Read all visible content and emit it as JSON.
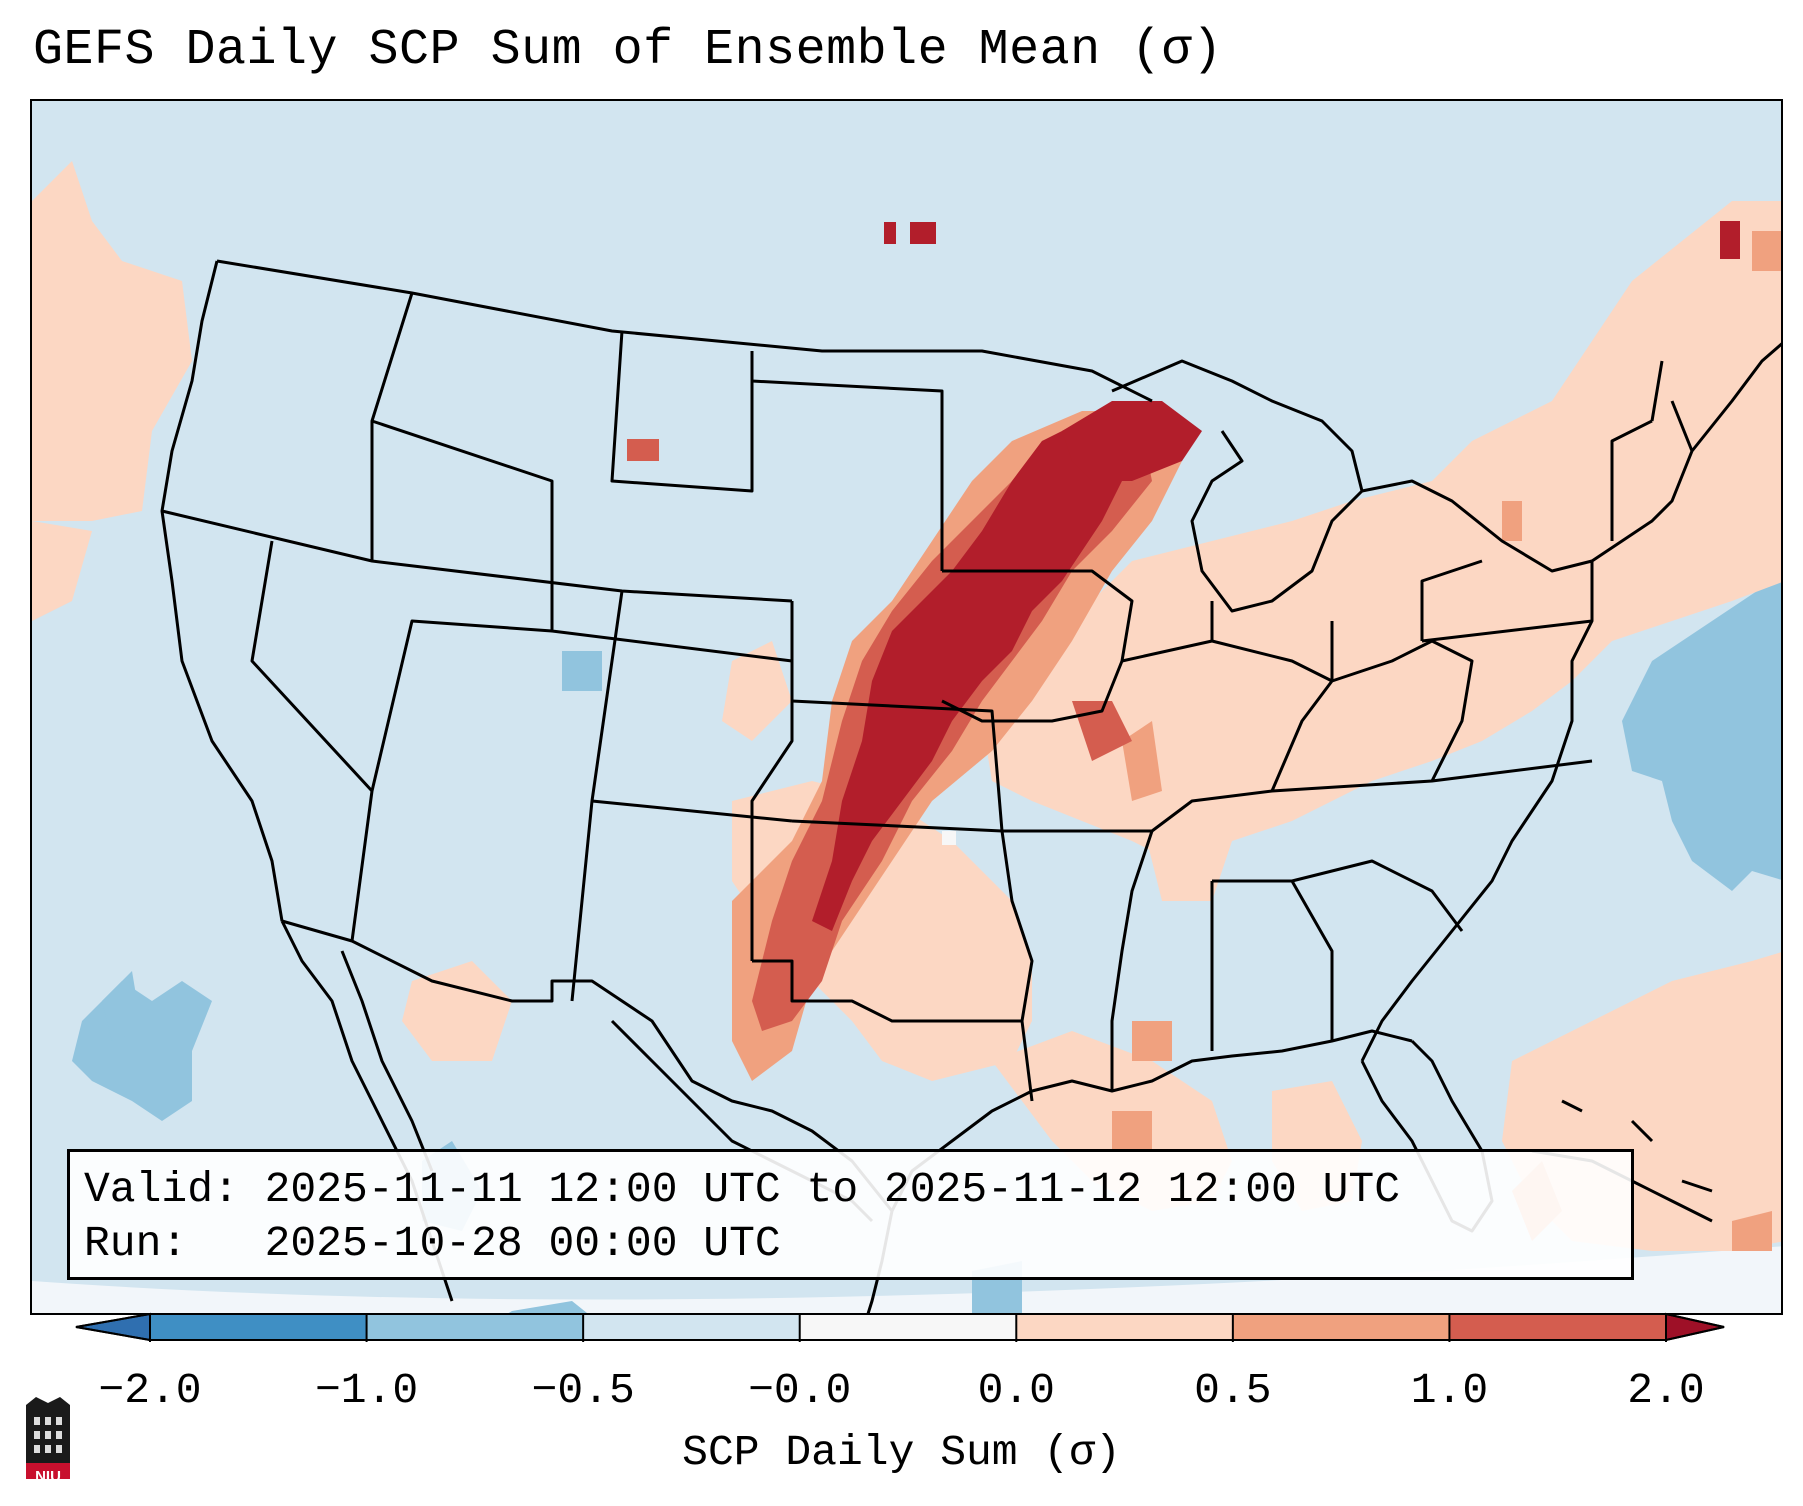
{
  "title": "GEFS Daily SCP Sum of Ensemble Mean (σ)",
  "info": {
    "valid_line": "Valid: 2025-11-11 12:00 UTC to 2025-11-12 12:00 UTC",
    "run_line": "Run:   2025-10-28 00:00 UTC"
  },
  "colorbar": {
    "label": "SCP Daily Sum (σ)",
    "ticks": [
      "−2.0",
      "−1.0",
      "−0.5",
      "−0.0",
      "0.0",
      "0.5",
      "1.0",
      "2.0"
    ],
    "colors": [
      "#3f8fc4",
      "#91c4de",
      "#d2e5f0",
      "#f7f7f7",
      "#fcd7c3",
      "#f0a17f",
      "#d45d4f",
      "#b21e2b"
    ],
    "extend_low_color": "#2f6fb0",
    "extend_high_color": "#9e1027"
  },
  "map": {
    "background_color": "#d2e5f0",
    "corner_color": "#f2f6fa",
    "field_summary": "Elevated SCP band from west Texas through Oklahoma, Kansas, Nebraska, Iowa into Wisconsin and Upper Michigan"
  },
  "logo": {
    "text": "NIU"
  }
}
